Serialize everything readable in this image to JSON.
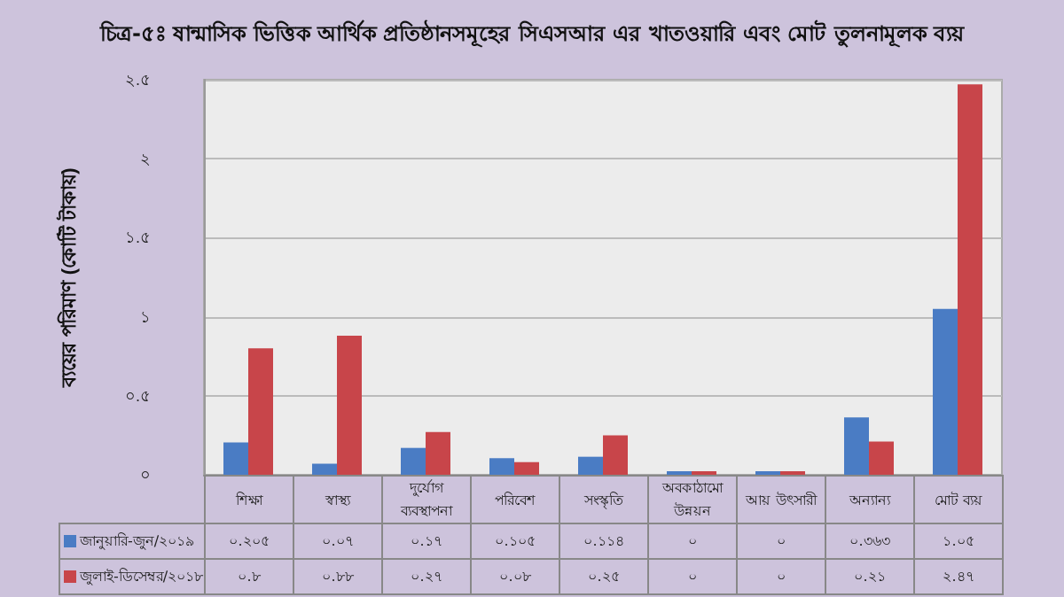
{
  "chart_data": {
    "type": "bar",
    "title": "চিত্র-৫ঃ ষান্মাসিক ভিত্তিক আর্থিক প্রতিষ্ঠানসমূহের সিএসআর এর খাতওয়ারি এবং মোট তুলনামূলক ব্যয়",
    "ylabel": "ব্যয়ের পরিমাণ (কোটি টাকায়)",
    "categories": [
      "শিক্ষা",
      "স্বাস্থ্য",
      "দুর্যোগ ব্যবস্থাপনা",
      "পরিবেশ",
      "সংস্কৃতি",
      "অবকাঠামো উন্নয়ন",
      "আয় উৎসারী",
      "অন্যান্য",
      "মোট ব্যয়"
    ],
    "series": [
      {
        "name": "জানুয়ারি-জুন/২০১৯",
        "color": "#4a7cc4",
        "values": [
          0.205,
          0.07,
          0.17,
          0.105,
          0.114,
          0,
          0,
          0.363,
          1.05
        ],
        "value_labels": [
          "০.২০৫",
          "০.০৭",
          "০.১৭",
          "০.১০৫",
          "০.১১৪",
          "০",
          "০",
          "০.৩৬৩",
          "১.০৫"
        ]
      },
      {
        "name": "জুলাই-ডিসেম্বর/২০১৮",
        "color": "#c8454a",
        "values": [
          0.8,
          0.88,
          0.27,
          0.08,
          0.25,
          0,
          0,
          0.21,
          2.47
        ],
        "value_labels": [
          "০.৮",
          "০.৮৮",
          "০.২৭",
          "০.০৮",
          "০.২৫",
          "০",
          "০",
          "০.২১",
          "২.৪৭"
        ]
      }
    ],
    "ylim": [
      0,
      2.5
    ],
    "yticks": [
      {
        "value": 0,
        "label": "০"
      },
      {
        "value": 0.5,
        "label": "০.৫"
      },
      {
        "value": 1,
        "label": "১"
      },
      {
        "value": 1.5,
        "label": "১.৫"
      },
      {
        "value": 2,
        "label": "২"
      },
      {
        "value": 2.5,
        "label": "২.৫"
      }
    ],
    "grid": "y",
    "legend": "bottom left"
  }
}
